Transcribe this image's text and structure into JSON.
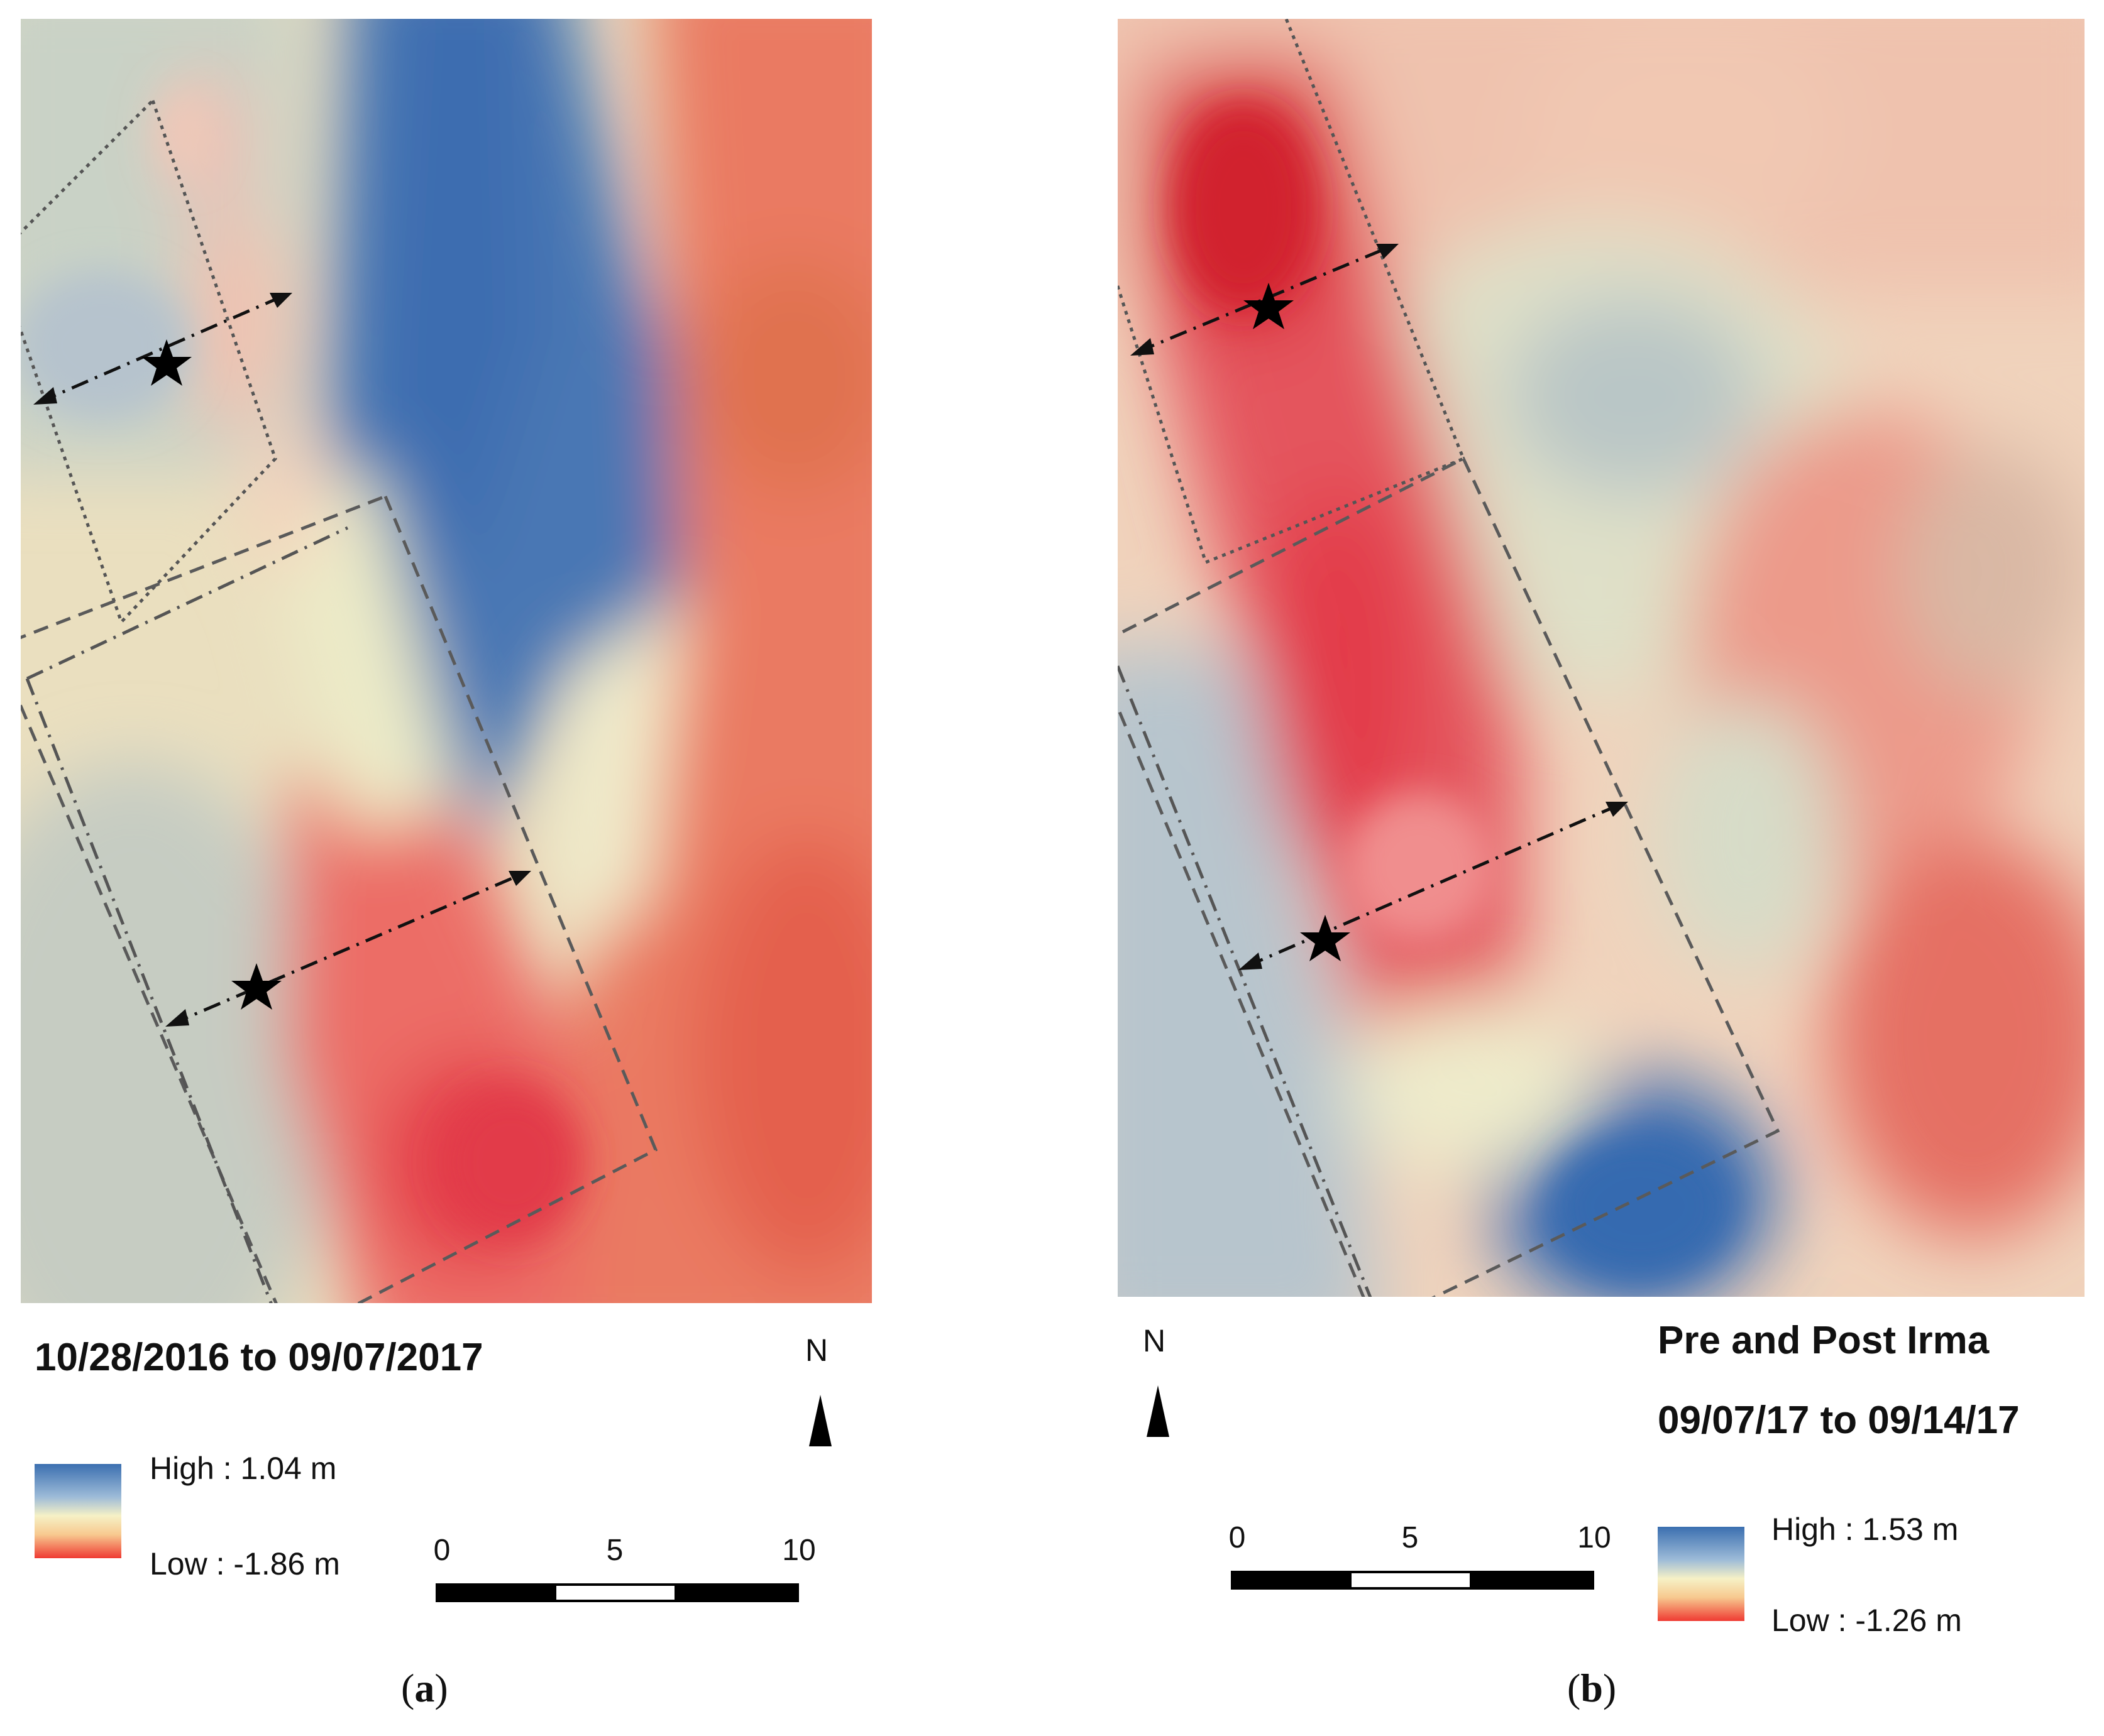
{
  "panels": [
    {
      "id": "a",
      "caption_open": "(",
      "caption_letter": "a",
      "caption_close": ")",
      "date_range": "10/28/2016 to 09/07/2017",
      "title": "",
      "legend": {
        "high": "High : 1.04 m",
        "low": "Low : -1.86 m"
      },
      "north_label": "N",
      "scale": {
        "ticks": [
          "0",
          "5",
          "10"
        ]
      }
    },
    {
      "id": "b",
      "caption_open": "(",
      "caption_letter": "b",
      "caption_close": ")",
      "title": "Pre and Post Irma",
      "date_range": "09/07/17 to 09/14/17",
      "legend": {
        "high": "High : 1.53 m",
        "low": "Low : -1.26 m"
      },
      "north_label": "N",
      "scale": {
        "ticks": [
          "0",
          "5",
          "10"
        ]
      }
    }
  ],
  "colors": {
    "high": "#3b6fb0",
    "mid": "#f6f1c6",
    "low": "#ef3a32",
    "ramp_high_light": "#9dbbd8",
    "ramp_mid_warm": "#f7c98f"
  },
  "icons": {
    "marker": "star-icon",
    "north": "north-arrow-icon"
  }
}
